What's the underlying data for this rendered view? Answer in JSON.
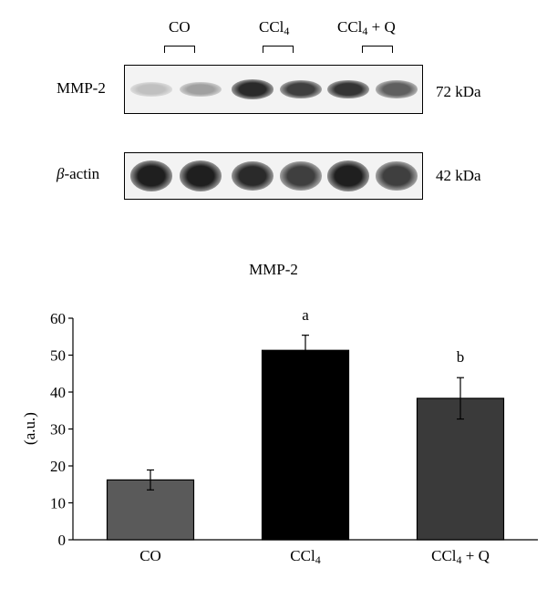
{
  "blot": {
    "groups": [
      {
        "name": "CO",
        "sub": "",
        "suffix": ""
      },
      {
        "name": "CCl",
        "sub": "4",
        "suffix": ""
      },
      {
        "name": "CCl",
        "sub": "4",
        "suffix": " + Q"
      }
    ],
    "rows": [
      {
        "protein": "MMP-2",
        "size": "72 kDa",
        "band_intensity": [
          0.2,
          0.35,
          0.9,
          0.8,
          0.85,
          0.65
        ]
      },
      {
        "protein_prefix": "β",
        "protein_suffix": "-actin",
        "size": "42 kDa",
        "band_intensity": [
          0.95,
          0.95,
          0.9,
          0.8,
          0.95,
          0.8
        ]
      }
    ]
  },
  "chart_data": {
    "type": "bar",
    "title": "MMP-2",
    "ylabel": "(a.u.)",
    "xlabel": "",
    "ylim": [
      0,
      60
    ],
    "yticks": [
      "0",
      "10",
      "20",
      "30",
      "40",
      "50",
      "60"
    ],
    "categories": [
      {
        "name": "CO",
        "sub": "",
        "suffix": ""
      },
      {
        "name": "CCl",
        "sub": "4",
        "suffix": ""
      },
      {
        "name": "CCl",
        "sub": "4",
        "suffix": " + Q"
      }
    ],
    "values": [
      16.2,
      51.3,
      38.3
    ],
    "errors": [
      2.7,
      4.1,
      5.6
    ],
    "colors": [
      "#5a5a5a",
      "#000000",
      "#3a3a3a"
    ],
    "annotations": [
      "",
      "a",
      "b"
    ],
    "grid": false
  }
}
